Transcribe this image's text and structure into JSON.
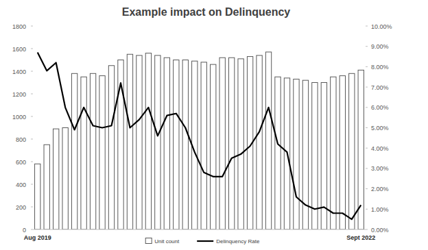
{
  "chart_data": {
    "type": "bar",
    "title": "Example impact on Delinquency",
    "categories": [
      "Aug 2019",
      null,
      null,
      null,
      null,
      null,
      null,
      null,
      null,
      null,
      null,
      null,
      null,
      null,
      null,
      null,
      null,
      null,
      null,
      null,
      null,
      null,
      null,
      null,
      null,
      null,
      null,
      null,
      null,
      null,
      null,
      null,
      null,
      null,
      null,
      "Sept 2022"
    ],
    "series": [
      {
        "name": "Unit count",
        "type": "bar",
        "color": "#ffffff",
        "values": [
          580,
          750,
          890,
          900,
          1380,
          1350,
          1380,
          1360,
          1450,
          1500,
          1550,
          1540,
          1560,
          1540,
          1520,
          1500,
          1500,
          1490,
          1480,
          1460,
          1520,
          1520,
          1510,
          1530,
          1540,
          1570,
          1350,
          1340,
          1330,
          1320,
          1300,
          1300,
          1350,
          1360,
          1380,
          1410
        ]
      },
      {
        "name": "Delinquency Rate",
        "type": "line",
        "color": "#000000",
        "axis": "y2",
        "values": [
          8.7,
          7.8,
          8.2,
          6.0,
          4.9,
          6.0,
          5.1,
          5.0,
          5.1,
          7.2,
          5.0,
          5.4,
          6.0,
          4.6,
          5.6,
          5.7,
          5.0,
          3.8,
          2.8,
          2.6,
          2.6,
          3.5,
          3.7,
          4.1,
          4.8,
          6.0,
          4.2,
          3.8,
          1.6,
          1.2,
          1.0,
          1.1,
          0.8,
          0.8,
          0.5,
          1.2
        ]
      }
    ],
    "ylim": [
      0,
      1800
    ],
    "yticks": [
      0,
      200,
      400,
      600,
      800,
      1000,
      1200,
      1400,
      1600,
      1800
    ],
    "y2lim": [
      0,
      10
    ],
    "y2ticks": [
      {
        "value": 0,
        "label": "0.00%"
      },
      {
        "value": 1,
        "label": "1.00%"
      },
      {
        "value": 2,
        "label": "2.00%"
      },
      {
        "value": 3,
        "label": "3.00%"
      },
      {
        "value": 4,
        "label": "4.00%"
      },
      {
        "value": 5,
        "label": "5.00%"
      },
      {
        "value": 6,
        "label": "6.00%"
      },
      {
        "value": 7,
        "label": "7.00%"
      },
      {
        "value": 8,
        "label": "8.00%"
      },
      {
        "value": 9,
        "label": "9.00%"
      },
      {
        "value": 10,
        "label": "10.00%"
      }
    ],
    "grid": false,
    "legend": "bottom"
  }
}
